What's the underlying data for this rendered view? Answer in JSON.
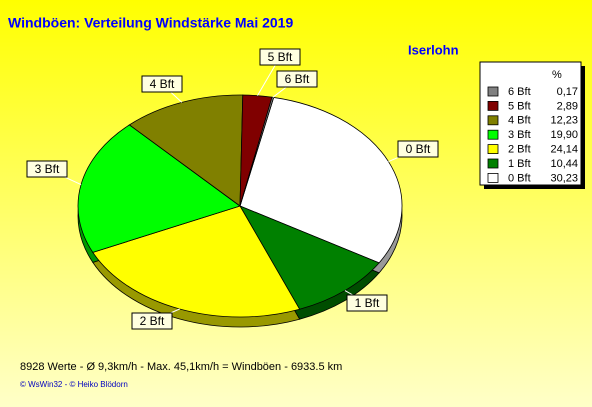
{
  "chart_data": {
    "type": "pie",
    "title": "Windböen: Verteilung Windstärke  Mai 2019",
    "subtitle": "Iserlohn",
    "legend_header": "%",
    "categories": [
      "0 Bft",
      "1 Bft",
      "2 Bft",
      "3 Bft",
      "4 Bft",
      "5 Bft",
      "6 Bft"
    ],
    "values": [
      30.23,
      10.44,
      24.14,
      19.9,
      12.23,
      2.89,
      0.17
    ],
    "value_labels": [
      "30,23",
      "10,44",
      "24,14",
      "19,90",
      "12,23",
      "2,89",
      "0,17"
    ],
    "colors": [
      "#ffffff",
      "#008000",
      "#ffff00",
      "#00ff00",
      "#808000",
      "#800000",
      "#808080"
    ],
    "footer": "8928 Werte   -   Ø 9,3km/h  -  Max. 45,1km/h = Windböen   -   6933.5 km",
    "copyright": "© WsWin32  -  © Heiko Blödorn"
  }
}
